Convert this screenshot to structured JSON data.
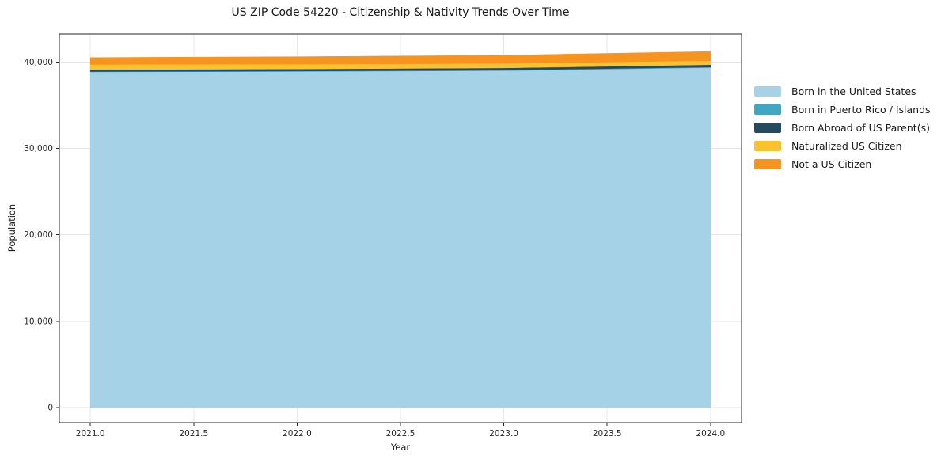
{
  "chart_data": {
    "type": "area",
    "stacked": true,
    "title": "US ZIP Code 54220 - Citizenship & Nativity Trends Over Time",
    "xlabel": "Year",
    "ylabel": "Population",
    "x": [
      2021,
      2022,
      2023,
      2024
    ],
    "series": [
      {
        "name": "Born in the United States",
        "color": "#a6d2e7",
        "values": [
          38850,
          38900,
          39000,
          39350
        ]
      },
      {
        "name": "Born in Puerto Rico / Islands",
        "color": "#41a6c3",
        "values": [
          50,
          55,
          65,
          75
        ]
      },
      {
        "name": "Born Abroad of US Parent(s)",
        "color": "#264a5d",
        "values": [
          225,
          240,
          255,
          270
        ]
      },
      {
        "name": "Naturalized US Citizen",
        "color": "#fcc22e",
        "values": [
          600,
          560,
          520,
          470
        ]
      },
      {
        "name": "Not a US Citizen",
        "color": "#f79420",
        "values": [
          800,
          870,
          950,
          1060
        ]
      }
    ],
    "totals": [
      40525,
      40625,
      40790,
      41225
    ],
    "xticks": [
      {
        "v": 2021.0,
        "label": "2021.0"
      },
      {
        "v": 2021.5,
        "label": "2021.5"
      },
      {
        "v": 2022.0,
        "label": "2022.0"
      },
      {
        "v": 2022.5,
        "label": "2022.5"
      },
      {
        "v": 2023.0,
        "label": "2023.0"
      },
      {
        "v": 2023.5,
        "label": "2023.5"
      },
      {
        "v": 2024.0,
        "label": "2024.0"
      }
    ],
    "yticks": [
      {
        "v": 0,
        "label": "0"
      },
      {
        "v": 10000,
        "label": "10,000"
      },
      {
        "v": 20000,
        "label": "20,000"
      },
      {
        "v": 30000,
        "label": "30,000"
      },
      {
        "v": 40000,
        "label": "40,000"
      }
    ],
    "xlim": [
      2020.85,
      2024.15
    ],
    "ylim": [
      -1740,
      43250
    ],
    "grid": true,
    "legend_position": "right-outside"
  },
  "colors": {
    "background": "#ffffff",
    "grid": "#e7e7e7",
    "spine": "#262626",
    "tick": "#262626",
    "text": "#1a1a1a"
  }
}
